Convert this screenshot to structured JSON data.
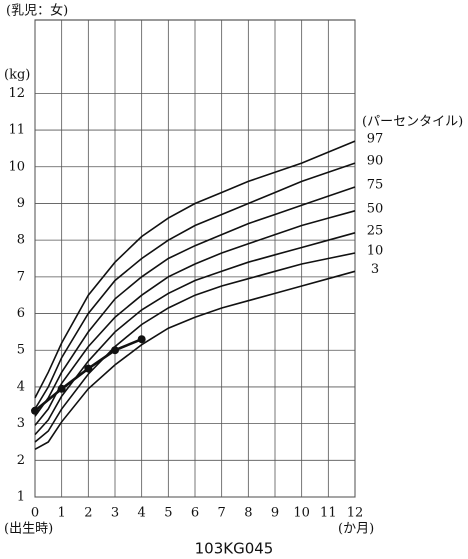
{
  "chart_data": {
    "type": "line",
    "title": "(乳児：女)",
    "y_label": "(kg)",
    "legend_title": "(パーセンタイル)",
    "x_note": "(出生時)",
    "x_label": "(か月)",
    "footer": "103KG045",
    "x": [
      0,
      0.5,
      1,
      2,
      3,
      4,
      5,
      6,
      7,
      8,
      9,
      10,
      11,
      12
    ],
    "series": [
      {
        "name": "97",
        "color": "#111111",
        "values": [
          3.7,
          4.4,
          5.2,
          6.5,
          7.4,
          8.1,
          8.6,
          9.0,
          9.3,
          9.6,
          9.85,
          10.1,
          10.4,
          10.7
        ]
      },
      {
        "name": "90",
        "color": "#111111",
        "values": [
          3.4,
          4.0,
          4.8,
          6.0,
          6.9,
          7.5,
          8.0,
          8.4,
          8.7,
          9.0,
          9.3,
          9.6,
          9.85,
          10.1
        ]
      },
      {
        "name": "75",
        "color": "#111111",
        "values": [
          3.2,
          3.7,
          4.4,
          5.5,
          6.4,
          7.0,
          7.5,
          7.85,
          8.15,
          8.45,
          8.7,
          8.95,
          9.2,
          9.45
        ]
      },
      {
        "name": "50",
        "color": "#111111",
        "values": [
          2.95,
          3.4,
          4.1,
          5.1,
          5.9,
          6.5,
          7.0,
          7.35,
          7.65,
          7.9,
          8.15,
          8.4,
          8.6,
          8.8
        ]
      },
      {
        "name": "25",
        "color": "#111111",
        "values": [
          2.7,
          3.1,
          3.75,
          4.7,
          5.5,
          6.1,
          6.55,
          6.9,
          7.15,
          7.4,
          7.6,
          7.8,
          8.0,
          8.2
        ]
      },
      {
        "name": "10",
        "color": "#111111",
        "values": [
          2.5,
          2.8,
          3.4,
          4.35,
          5.1,
          5.7,
          6.15,
          6.5,
          6.75,
          6.95,
          7.15,
          7.35,
          7.5,
          7.65
        ]
      },
      {
        "name": "3",
        "color": "#111111",
        "values": [
          2.3,
          2.5,
          3.05,
          3.95,
          4.6,
          5.15,
          5.6,
          5.9,
          6.15,
          6.35,
          6.55,
          6.75,
          6.95,
          7.15
        ]
      }
    ],
    "measurements": {
      "color": "#111111",
      "x": [
        0,
        1,
        2,
        3,
        4
      ],
      "values": [
        3.35,
        3.95,
        4.5,
        5.0,
        5.3
      ]
    },
    "xlim": [
      0,
      12
    ],
    "xticks": [
      0,
      1,
      2,
      3,
      4,
      5,
      6,
      7,
      8,
      9,
      10,
      11,
      12
    ],
    "ylim": [
      1,
      14
    ],
    "yticks": [
      1,
      2,
      3,
      4,
      5,
      6,
      7,
      8,
      9,
      10,
      11,
      12
    ],
    "grid": true
  }
}
